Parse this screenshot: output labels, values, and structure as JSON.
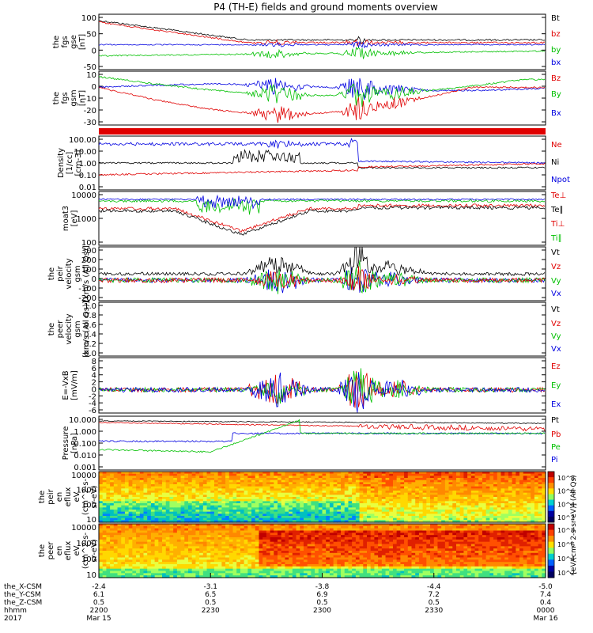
{
  "title": "P4 (TH-E) fields and ground moments overview",
  "colors": {
    "black": "#000000",
    "red": "#e00000",
    "green": "#00c000",
    "blue": "#0000e0"
  },
  "chart_data": [
    {
      "type": "line",
      "id": "bgse",
      "ylabel_lines": [
        "the",
        "fgs",
        "gse",
        "[nT]"
      ],
      "yticks": [
        "100",
        "50",
        "0",
        "-50"
      ],
      "legend": [
        {
          "name": "Bt",
          "color": "black"
        },
        {
          "name": "bz",
          "color": "red"
        },
        {
          "name": "by",
          "color": "green"
        },
        {
          "name": "bx",
          "color": "blue"
        }
      ],
      "series_levels": {
        "Bt": [
          85,
          40,
          30
        ],
        "bz": [
          82,
          38,
          28
        ],
        "by": [
          -15,
          -20,
          -8
        ],
        "bx": [
          15,
          8,
          10
        ]
      },
      "ylim": [
        -55,
        105
      ]
    },
    {
      "type": "line",
      "id": "bgsm",
      "ylabel_lines": [
        "the",
        "fgs",
        "gsm",
        "[nT]"
      ],
      "yticks": [
        "10",
        "0",
        "-10",
        "-20",
        "-30"
      ],
      "legend": [
        {
          "name": "Bz",
          "color": "red"
        },
        {
          "name": "By",
          "color": "green"
        },
        {
          "name": "Bx",
          "color": "blue"
        }
      ],
      "series_levels": {
        "Bz": [
          -5,
          -28,
          -20,
          -5
        ],
        "By": [
          8,
          -10,
          -15,
          10
        ],
        "Bx": [
          5,
          -2,
          5,
          -2
        ]
      },
      "ylim": [
        -35,
        13
      ]
    },
    {
      "type": "bar",
      "id": "mode_bar",
      "color": "red"
    },
    {
      "type": "line",
      "id": "density",
      "ylabel_lines": [
        "Density",
        "[1/cc]",
        "[cm-3]"
      ],
      "yticks": [
        "100.00",
        "10.00",
        "1.00",
        "0.10",
        "0.01"
      ],
      "legend": [
        {
          "name": "Ne",
          "color": "red"
        },
        {
          "name": "Ni",
          "color": "black"
        },
        {
          "name": "Npot",
          "color": "blue"
        }
      ],
      "scale": "log"
    },
    {
      "type": "line",
      "id": "temperature",
      "ylabel_lines": [
        "moat3",
        "[eV]"
      ],
      "yticks": [
        "10000",
        "1000",
        "100"
      ],
      "legend": [
        {
          "name": "Te⊥",
          "color": "red"
        },
        {
          "name": "Te∥",
          "color": "black"
        },
        {
          "name": "Ti⊥",
          "color": "red"
        },
        {
          "name": "Ti∥",
          "color": "green"
        }
      ],
      "scale": "log"
    },
    {
      "type": "line",
      "id": "ion_velocity",
      "ylabel_lines": [
        "the",
        "peir",
        "velocity",
        "gsm",
        "[km/s (All Qs)]"
      ],
      "yticks": [
        "300",
        "200",
        "100",
        "0",
        "-100",
        "-200"
      ],
      "legend": [
        {
          "name": "Vt",
          "color": "black"
        },
        {
          "name": "Vz",
          "color": "red"
        },
        {
          "name": "Vy",
          "color": "green"
        },
        {
          "name": "Vx",
          "color": "blue"
        }
      ]
    },
    {
      "type": "line",
      "id": "electron_velocity",
      "ylabel_lines": [
        "the",
        "peer",
        "velocity",
        "gsm",
        "[km/s (All Qs)]"
      ],
      "yticks": [
        "1.0",
        "0.8",
        "0.6",
        "0.4",
        "0.2",
        "0.0"
      ],
      "legend": [
        {
          "name": "Vt",
          "color": "black"
        },
        {
          "name": "Vz",
          "color": "red"
        },
        {
          "name": "Vy",
          "color": "green"
        },
        {
          "name": "Vx",
          "color": "blue"
        }
      ]
    },
    {
      "type": "line",
      "id": "efield",
      "ylabel_lines": [
        "E=-VxB",
        "[mV/m]"
      ],
      "yticks": [
        "8",
        "6",
        "4",
        "2",
        "0",
        "-2",
        "-4",
        "-6"
      ],
      "legend": [
        {
          "name": "Ez",
          "color": "red"
        },
        {
          "name": "Ey",
          "color": "green"
        },
        {
          "name": "Ex",
          "color": "blue"
        }
      ]
    },
    {
      "type": "line",
      "id": "pressure",
      "ylabel_lines": [
        "Pressure",
        "[nPa]"
      ],
      "yticks": [
        "10.000",
        "1.000",
        "0.100",
        "0.010",
        "0.001"
      ],
      "legend": [
        {
          "name": "Pt",
          "color": "black"
        },
        {
          "name": "Pb",
          "color": "red"
        },
        {
          "name": "Pe",
          "color": "green"
        },
        {
          "name": "Pi",
          "color": "blue"
        }
      ],
      "scale": "log"
    },
    {
      "type": "heatmap",
      "id": "ion_spectrogram",
      "ylabel_lines": [
        "the",
        "peir",
        "en",
        "eflux",
        "eV",
        "(cm^2-s-",
        "sr-eV)"
      ],
      "yticks": [
        "10000",
        "1000",
        "100",
        "10"
      ],
      "colorbar_ticks": [
        "10^8",
        "10^6",
        "10^4",
        "10^2"
      ]
    },
    {
      "type": "heatmap",
      "id": "electron_spectrogram",
      "ylabel_lines": [
        "the",
        "peer",
        "en",
        "eflux",
        "eV",
        "(cm^2-s-",
        "sr-eV)"
      ],
      "yticks": [
        "10000",
        "1000",
        "100",
        "10"
      ],
      "colorbar_ticks": [
        "10^8",
        "10^6",
        "10^4",
        "10^2"
      ]
    }
  ],
  "colorbar_label": "[eV/(cm^2-s-sr-eV)] (All Qs)",
  "x_axis": {
    "row_labels": [
      "the_X-CSM",
      "the_Y-CSM",
      "the_Z-CSM",
      "hhmm",
      "2017"
    ],
    "ticks": [
      {
        "x": "-2.4",
        "y": "6.1",
        "z": "0.5",
        "hhmm": "2200",
        "date": "Mar 15"
      },
      {
        "x": "-3.1",
        "y": "6.5",
        "z": "0.5",
        "hhmm": "2230",
        "date": ""
      },
      {
        "x": "-3.8",
        "y": "6.9",
        "z": "0.5",
        "hhmm": "2300",
        "date": ""
      },
      {
        "x": "-4.4",
        "y": "7.2",
        "z": "0.5",
        "hhmm": "2330",
        "date": ""
      },
      {
        "x": "-5.0",
        "y": "7.4",
        "z": "0.4",
        "hhmm": "0000",
        "date": "Mar 16"
      }
    ]
  }
}
